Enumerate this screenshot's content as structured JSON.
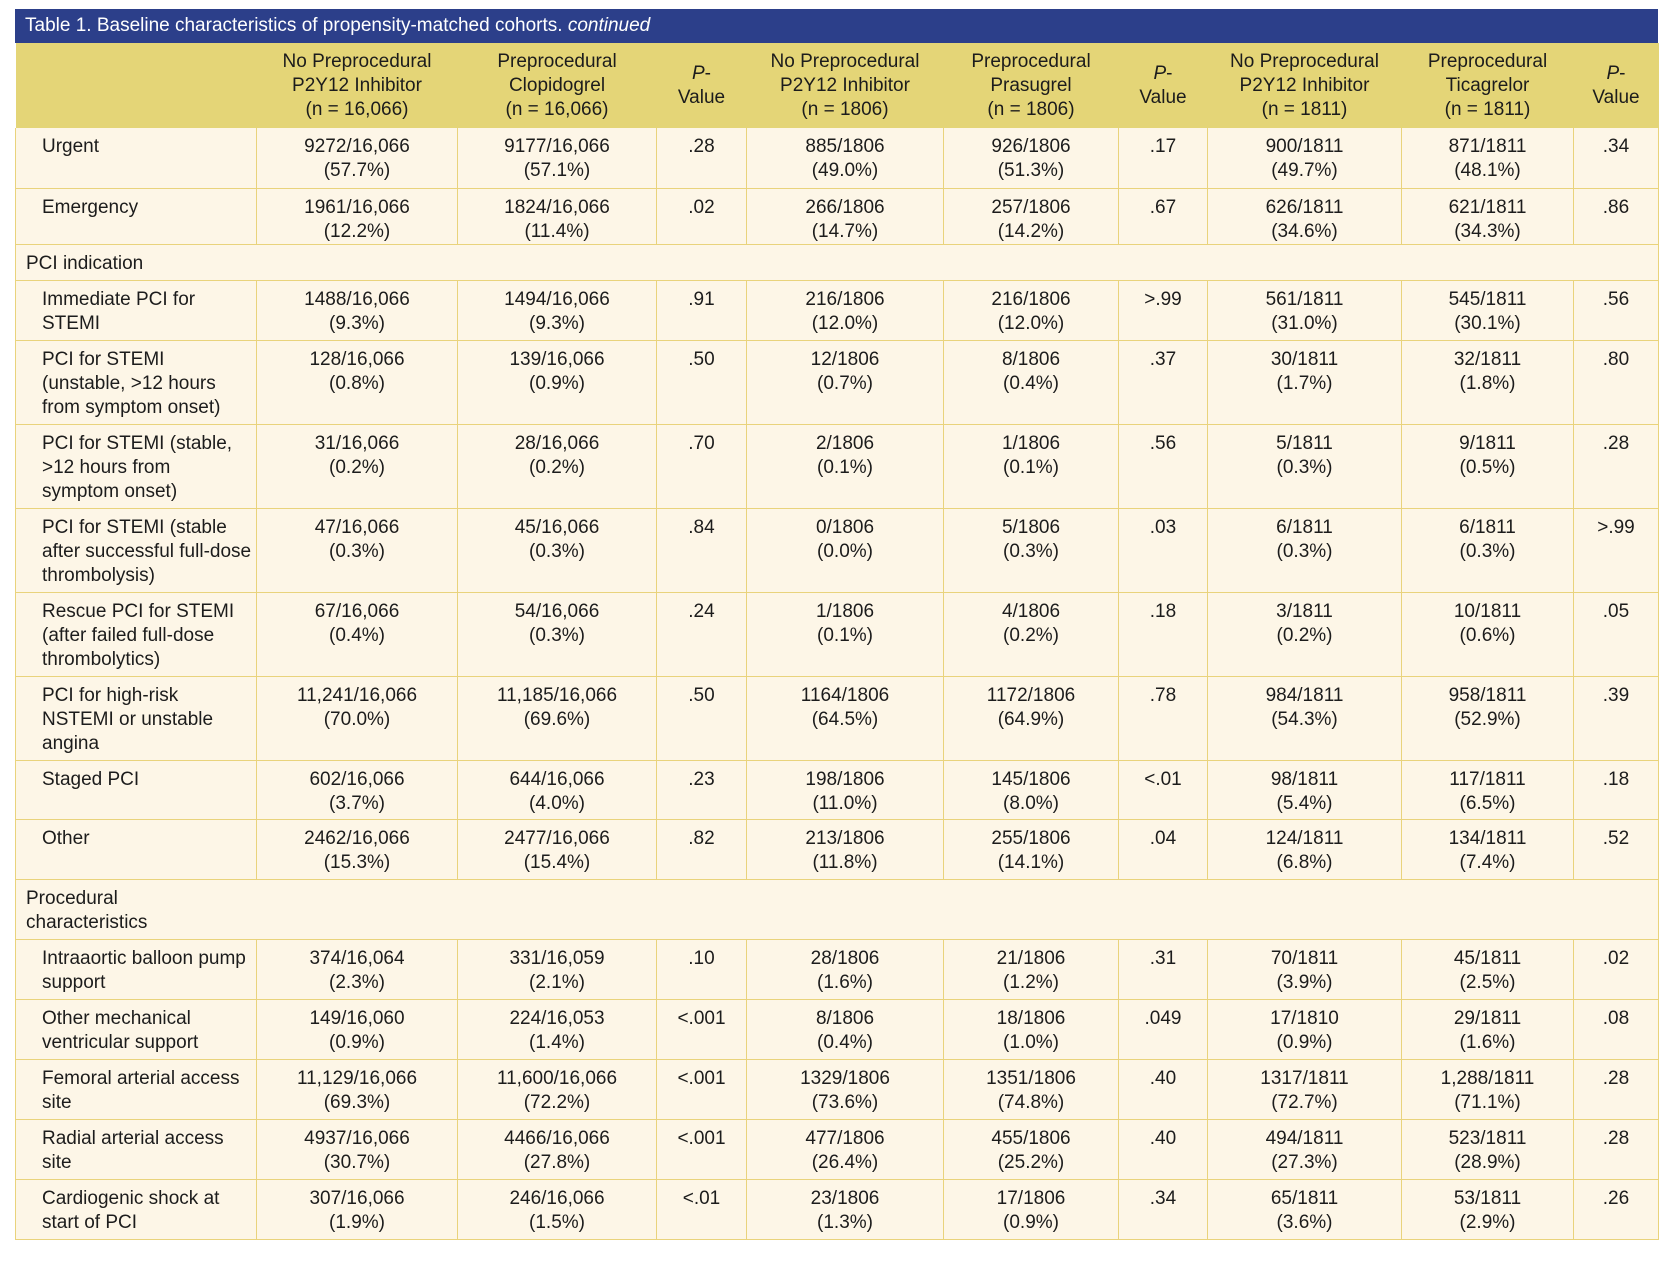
{
  "title": {
    "main": "Table 1. Baseline characteristics of propensity-matched cohorts.",
    "suffix": "continued"
  },
  "colors": {
    "title_bar": "#2c3f8a",
    "header": "#e4d577",
    "row": "#fdf6e7",
    "border": "#e9d37c"
  },
  "columns": [
    "",
    "No Preprocedural P2Y12 Inhibitor (n = 16,066)",
    "Preprocedural Clopidogrel (n = 16,066)",
    "P-Value",
    "No Preprocedural P2Y12 Inhibitor (n = 1806)",
    "Preprocedural Prasugrel (n = 1806)",
    "P-Value",
    "No Preprocedural P2Y12 Inhibitor (n = 1811)",
    "Preprocedural Ticagrelor (n = 1811)",
    "P-Value"
  ],
  "rows": [
    {
      "cells": [
        "Urgent",
        "9272/16,066 (57.7%)",
        "9177/16,066 (57.1%)",
        ".28",
        "885/1806 (49.0%)",
        "926/1806 (51.3%)",
        ".17",
        "900/1811 (49.7%)",
        "871/1811 (48.1%)",
        ".34"
      ]
    },
    {
      "cells": [
        "Emergency",
        "1961/16,066 (12.2%)",
        "1824/16,066 (11.4%)",
        ".02",
        "266/1806 (14.7%)",
        "257/1806 (14.2%)",
        ".67",
        "626/1811 (34.6%)",
        "621/1811 (34.3%)",
        ".86"
      ]
    },
    {
      "section": "PCI indication"
    },
    {
      "cells": [
        "Immediate PCI for STEMI",
        "1488/16,066 (9.3%)",
        "1494/16,066 (9.3%)",
        ".91",
        "216/1806 (12.0%)",
        "216/1806 (12.0%)",
        ">.99",
        "561/1811 (31.0%)",
        "545/1811 (30.1%)",
        ".56"
      ]
    },
    {
      "cells": [
        "PCI for STEMI (unstable, >12 hours from symptom onset)",
        "128/16,066 (0.8%)",
        "139/16,066 (0.9%)",
        ".50",
        "12/1806 (0.7%)",
        "8/1806 (0.4%)",
        ".37",
        "30/1811 (1.7%)",
        "32/1811 (1.8%)",
        ".80"
      ]
    },
    {
      "cells": [
        "PCI for STEMI (stable, >12 hours from symptom onset)",
        "31/16,066 (0.2%)",
        "28/16,066 (0.2%)",
        ".70",
        "2/1806 (0.1%)",
        "1/1806 (0.1%)",
        ".56",
        "5/1811 (0.3%)",
        "9/1811 (0.5%)",
        ".28"
      ]
    },
    {
      "cells": [
        "PCI for STEMI (stable after successful full-dose thrombolysis)",
        "47/16,066 (0.3%)",
        "45/16,066 (0.3%)",
        ".84",
        "0/1806 (0.0%)",
        "5/1806 (0.3%)",
        ".03",
        "6/1811 (0.3%)",
        "6/1811 (0.3%)",
        ">.99"
      ]
    },
    {
      "cells": [
        "Rescue PCI for STEMI (after failed full-dose thrombolytics)",
        "67/16,066 (0.4%)",
        "54/16,066 (0.3%)",
        ".24",
        "1/1806 (0.1%)",
        "4/1806 (0.2%)",
        ".18",
        "3/1811 (0.2%)",
        "10/1811 (0.6%)",
        ".05"
      ]
    },
    {
      "cells": [
        "PCI for high-risk NSTEMI or unstable angina",
        "11,241/16,066 (70.0%)",
        "11,185/16,066 (69.6%)",
        ".50",
        "1164/1806 (64.5%)",
        "1172/1806 (64.9%)",
        ".78",
        "984/1811 (54.3%)",
        "958/1811 (52.9%)",
        ".39"
      ]
    },
    {
      "cells": [
        "Staged PCI",
        "602/16,066 (3.7%)",
        "644/16,066 (4.0%)",
        ".23",
        "198/1806 (11.0%)",
        "145/1806 (8.0%)",
        "<.01",
        "98/1811 (5.4%)",
        "117/1811 (6.5%)",
        ".18"
      ]
    },
    {
      "cells": [
        "Other",
        "2462/16,066 (15.3%)",
        "2477/16,066 (15.4%)",
        ".82",
        "213/1806 (11.8%)",
        "255/1806 (14.1%)",
        ".04",
        "124/1811 (6.8%)",
        "134/1811 (7.4%)",
        ".52"
      ]
    },
    {
      "section": "Procedural characteristics"
    },
    {
      "cells": [
        "Intraaortic balloon pump support",
        "374/16,064 (2.3%)",
        "331/16,059 (2.1%)",
        ".10",
        "28/1806 (1.6%)",
        "21/1806 (1.2%)",
        ".31",
        "70/1811 (3.9%)",
        "45/1811 (2.5%)",
        ".02"
      ]
    },
    {
      "cells": [
        "Other mechanical ventricular support",
        "149/16,060 (0.9%)",
        "224/16,053 (1.4%)",
        "<.001",
        "8/1806 (0.4%)",
        "18/1806 (1.0%)",
        ".049",
        "17/1810 (0.9%)",
        "29/1811 (1.6%)",
        ".08"
      ]
    },
    {
      "cells": [
        "Femoral arterial access site",
        "11,129/16,066 (69.3%)",
        "11,600/16,066 (72.2%)",
        "<.001",
        "1329/1806 (73.6%)",
        "1351/1806 (74.8%)",
        ".40",
        "1317/1811 (72.7%)",
        "1,288/1811 (71.1%)",
        ".28"
      ]
    },
    {
      "cells": [
        "Radial arterial access site",
        "4937/16,066 (30.7%)",
        "4466/16,066 (27.8%)",
        "<.001",
        "477/1806 (26.4%)",
        "455/1806 (25.2%)",
        ".40",
        "494/1811 (27.3%)",
        "523/1811 (28.9%)",
        ".28"
      ]
    },
    {
      "cells": [
        "Cardiogenic shock at start of PCI",
        "307/16,066 (1.9%)",
        "246/16,066 (1.5%)",
        "<.01",
        "23/1806 (1.3%)",
        "17/1806 (0.9%)",
        ".34",
        "65/1811 (3.6%)",
        "53/1811 (2.9%)",
        ".26"
      ]
    }
  ]
}
